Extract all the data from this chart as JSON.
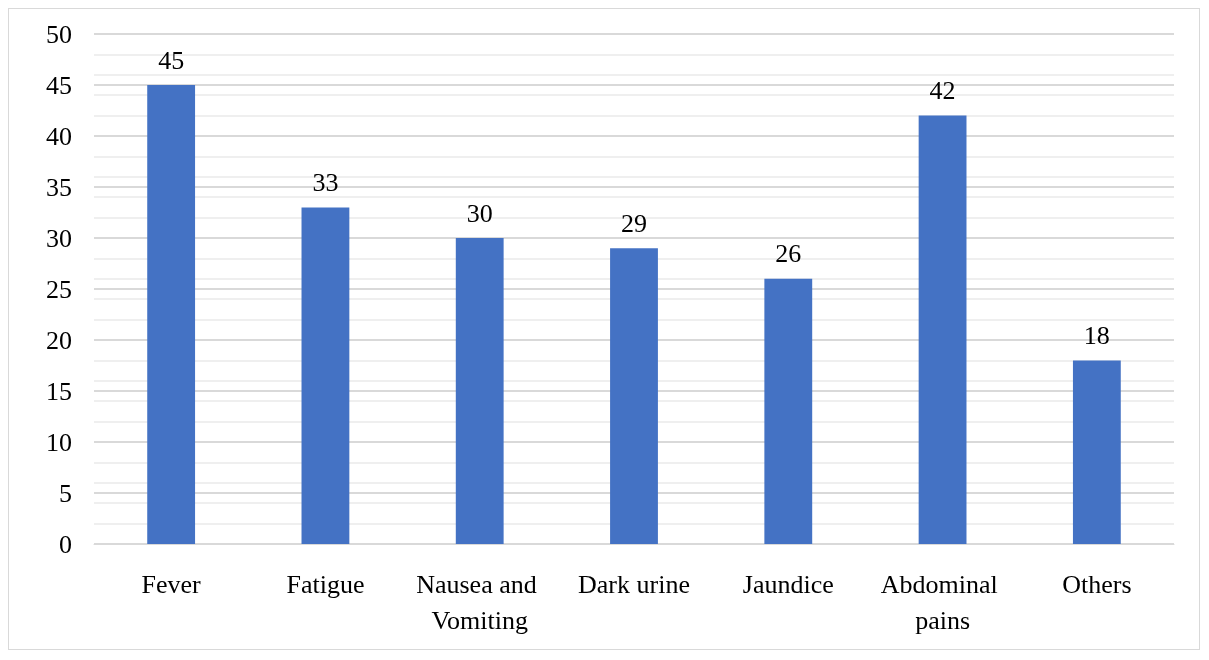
{
  "chart_data": {
    "type": "bar",
    "categories": [
      "Fever",
      "Fatigue",
      "Nausea and Vomiting",
      "Dark urine",
      "Jaundice",
      "Abdominal pains",
      "Others"
    ],
    "values": [
      45,
      33,
      30,
      29,
      26,
      42,
      18
    ],
    "color": "#4472c4",
    "ylim": [
      0,
      50
    ],
    "yticks": [
      0,
      5,
      10,
      15,
      20,
      25,
      30,
      35,
      40,
      45,
      50
    ],
    "grid": true,
    "data_labels": true
  }
}
